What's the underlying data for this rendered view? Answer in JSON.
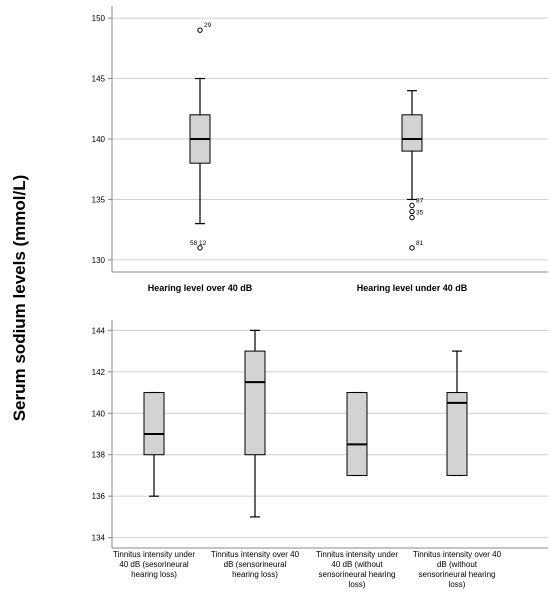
{
  "ylabel": "Serum sodium levels (mmol/L)",
  "chart_data": [
    {
      "type": "box",
      "ylim": [
        129,
        151
      ],
      "yticks": [
        130,
        135,
        140,
        145,
        150
      ],
      "grid": true,
      "categories": [
        "Hearing level over 40 dB",
        "Hearing level under 40 dB"
      ],
      "boxes": [
        {
          "whisker_low": 133,
          "q1": 138,
          "median": 140,
          "q3": 142,
          "whisker_high": 145,
          "outliers": [
            {
              "value": 149,
              "label": "29"
            },
            {
              "value": 131,
              "label": "58_12"
            }
          ]
        },
        {
          "whisker_low": 135,
          "q1": 139,
          "median": 140,
          "q3": 142,
          "whisker_high": 144,
          "outliers": [
            {
              "value": 134.5,
              "label": "87"
            },
            {
              "value": 134,
              "label": ""
            },
            {
              "value": 133.5,
              "label": "35"
            },
            {
              "value": 131,
              "label": "81"
            }
          ]
        }
      ]
    },
    {
      "type": "box",
      "ylim": [
        133.5,
        144.5
      ],
      "yticks": [
        134,
        136,
        138,
        140,
        142,
        144
      ],
      "grid": true,
      "categories": [
        [
          "Tinnitus intensity under",
          "40 dB (sesorineural",
          "hearing loss)"
        ],
        [
          "Tinnitus intensity over 40",
          "dB (sensorineural",
          "hearing loss)"
        ],
        [
          "Tinnitus intensity under",
          "40 dB (without",
          "sensorineural hearing",
          "loss)"
        ],
        [
          "Tinnitus intensity over 40",
          "dB (without",
          "sensorineural hearing",
          "loss)"
        ]
      ],
      "boxes": [
        {
          "whisker_low": 136,
          "q1": 138,
          "median": 139,
          "q3": 141,
          "whisker_high": 141,
          "outliers": []
        },
        {
          "whisker_low": 135,
          "q1": 138,
          "median": 141.5,
          "q3": 143,
          "whisker_high": 144,
          "outliers": []
        },
        {
          "whisker_low": 137,
          "q1": 137,
          "median": 138.5,
          "q3": 141,
          "whisker_high": 141,
          "outliers": []
        },
        {
          "whisker_low": 137,
          "q1": 137,
          "median": 140.5,
          "q3": 141,
          "whisker_high": 143,
          "outliers": []
        }
      ]
    }
  ],
  "colors": {
    "box_fill": "#d3d3d3",
    "grid": "#d0d0d0",
    "axis": "#888888",
    "stroke": "#000000"
  }
}
